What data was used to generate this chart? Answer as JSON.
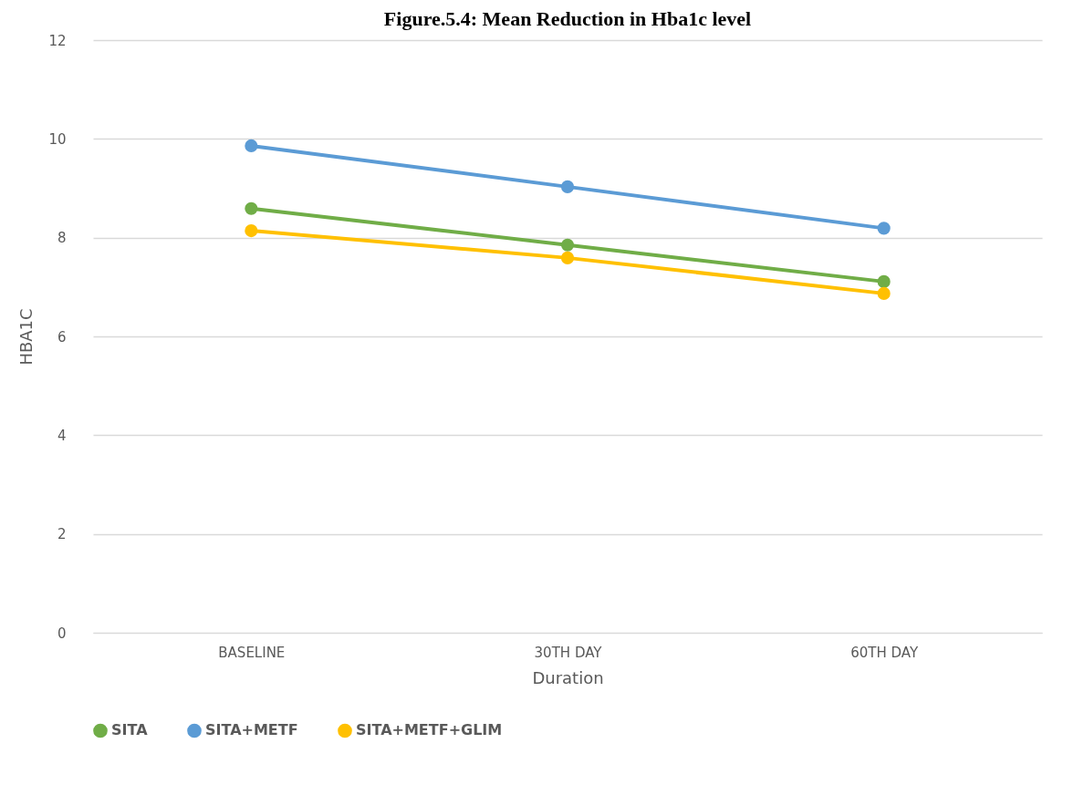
{
  "chart_data": {
    "type": "line",
    "title": "Figure.5.4: Mean Reduction in Hba1c level",
    "xlabel": "Duration",
    "ylabel": "HBA1C",
    "categories": [
      "BASELINE",
      "30TH DAY",
      "60TH  DAY"
    ],
    "series": [
      {
        "name": "SITA",
        "color": "#70ad47",
        "values": [
          8.59,
          7.85,
          7.11
        ]
      },
      {
        "name": "SITA+METF",
        "color": "#5b9bd5",
        "values": [
          9.86,
          9.03,
          8.19
        ]
      },
      {
        "name": "SITA+METF+GLIM",
        "color": "#ffc000",
        "values": [
          8.14,
          7.59,
          6.87
        ]
      }
    ],
    "ylim": [
      0,
      12
    ],
    "yticks": [
      0,
      2,
      4,
      6,
      8,
      10,
      12
    ],
    "grid": "y",
    "legend": "bottom",
    "marker": "circle",
    "line_style": "solid"
  }
}
